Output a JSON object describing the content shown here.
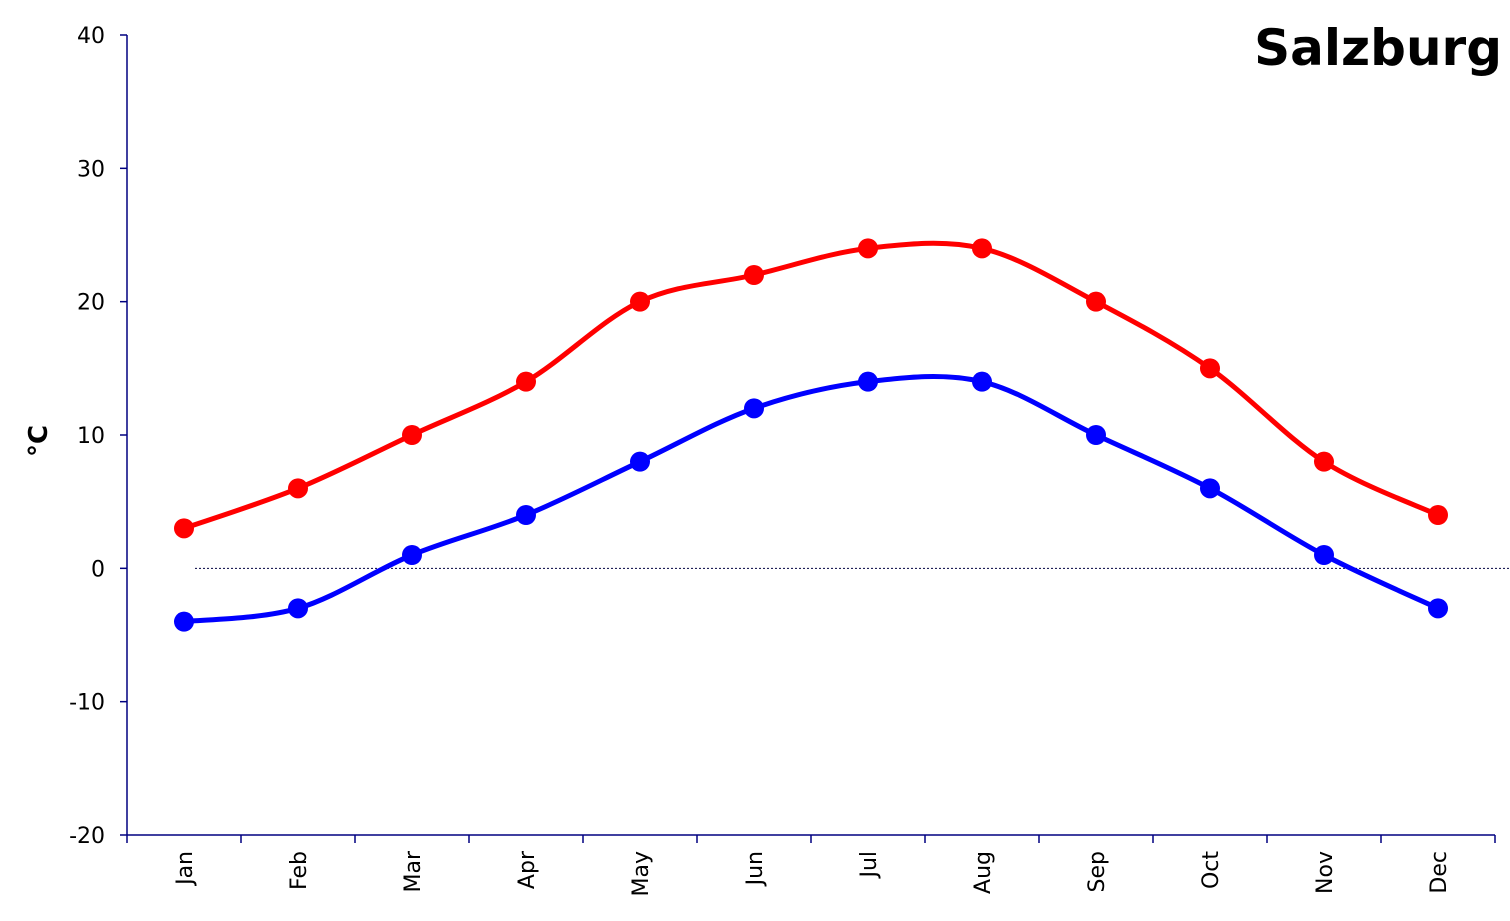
{
  "chart_data": {
    "type": "line",
    "title": "Salzburg",
    "xlabel": "",
    "ylabel": "°C",
    "categories": [
      "Jan",
      "Feb",
      "Mar",
      "Apr",
      "May",
      "Jun",
      "Jul",
      "Aug",
      "Sep",
      "Oct",
      "Nov",
      "Dec"
    ],
    "ylim": [
      -20,
      40
    ],
    "yticks": [
      "40",
      "30",
      "20",
      "10",
      "0",
      "-10",
      "-20"
    ],
    "grid": false,
    "zero_line": "dotted",
    "series": [
      {
        "values": [
          3,
          6,
          10,
          14,
          20,
          22,
          24,
          24,
          20,
          15,
          8,
          4
        ],
        "color": "#ff0000",
        "marker": "circle",
        "smooth": true
      },
      {
        "values": [
          -4,
          -3,
          1,
          4,
          8,
          12,
          14,
          14,
          10,
          6,
          1,
          -3
        ],
        "color": "#0000ff",
        "marker": "circle",
        "smooth": true
      }
    ]
  }
}
